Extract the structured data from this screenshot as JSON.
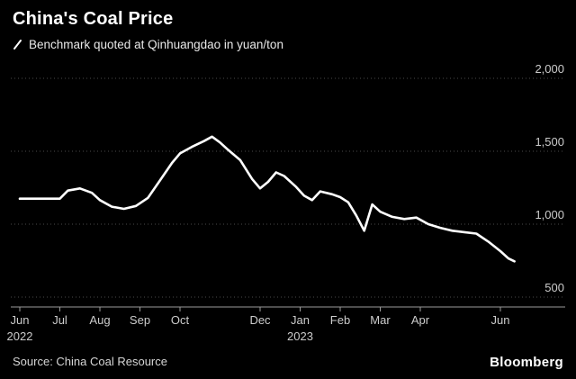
{
  "header": {
    "title": "China's Coal Price",
    "legend_label": "Benchmark quoted at Qinhuangdao in yuan/ton"
  },
  "footer": {
    "source": "Source: China Coal Resource",
    "brand": "Bloomberg"
  },
  "colors": {
    "background": "#000000",
    "line": "#ffffff",
    "grid": "#4a4a4a",
    "axis": "#9a9a9a",
    "axis_text": "#cccccc"
  },
  "chart_data": {
    "type": "line",
    "title": "China's Coal Price",
    "legend": [
      "Benchmark quoted at Qinhuangdao in yuan/ton"
    ],
    "ylabel": "yuan/ton",
    "ylim": [
      500,
      2000
    ],
    "yticks": [
      2000,
      1500,
      1000,
      500
    ],
    "ytick_labels": [
      "2,000",
      "1,500",
      "1,000",
      "500"
    ],
    "grid": "dotted-horizontal",
    "x_unit": "months since Jun 2022",
    "xticks": [
      {
        "m": 0,
        "label": "Jun",
        "year": "2022"
      },
      {
        "m": 1,
        "label": "Jul"
      },
      {
        "m": 2,
        "label": "Aug"
      },
      {
        "m": 3,
        "label": "Sep"
      },
      {
        "m": 4,
        "label": "Oct"
      },
      {
        "m": 6,
        "label": "Dec"
      },
      {
        "m": 7,
        "label": "Jan",
        "year": "2023"
      },
      {
        "m": 8,
        "label": "Feb"
      },
      {
        "m": 9,
        "label": "Mar"
      },
      {
        "m": 10,
        "label": "Apr"
      },
      {
        "m": 12,
        "label": "Jun"
      }
    ],
    "series": [
      {
        "name": "Benchmark quoted at Qinhuangdao in yuan/ton",
        "points": [
          [
            0.0,
            1175
          ],
          [
            0.6,
            1175
          ],
          [
            1.0,
            1175
          ],
          [
            1.2,
            1230
          ],
          [
            1.5,
            1245
          ],
          [
            1.8,
            1215
          ],
          [
            2.0,
            1165
          ],
          [
            2.3,
            1120
          ],
          [
            2.6,
            1105
          ],
          [
            2.9,
            1125
          ],
          [
            3.2,
            1180
          ],
          [
            3.5,
            1300
          ],
          [
            3.8,
            1420
          ],
          [
            4.0,
            1485
          ],
          [
            4.3,
            1530
          ],
          [
            4.6,
            1570
          ],
          [
            4.8,
            1600
          ],
          [
            5.0,
            1560
          ],
          [
            5.2,
            1510
          ],
          [
            5.5,
            1440
          ],
          [
            5.8,
            1310
          ],
          [
            6.0,
            1245
          ],
          [
            6.2,
            1290
          ],
          [
            6.4,
            1355
          ],
          [
            6.6,
            1330
          ],
          [
            6.9,
            1255
          ],
          [
            7.1,
            1195
          ],
          [
            7.3,
            1165
          ],
          [
            7.5,
            1225
          ],
          [
            7.8,
            1205
          ],
          [
            8.0,
            1185
          ],
          [
            8.2,
            1150
          ],
          [
            8.4,
            1060
          ],
          [
            8.6,
            955
          ],
          [
            8.8,
            1135
          ],
          [
            9.0,
            1085
          ],
          [
            9.3,
            1050
          ],
          [
            9.6,
            1035
          ],
          [
            9.9,
            1045
          ],
          [
            10.2,
            1000
          ],
          [
            10.5,
            975
          ],
          [
            10.8,
            955
          ],
          [
            11.1,
            945
          ],
          [
            11.4,
            935
          ],
          [
            11.7,
            880
          ],
          [
            12.0,
            815
          ],
          [
            12.2,
            765
          ],
          [
            12.35,
            745
          ]
        ]
      }
    ]
  }
}
